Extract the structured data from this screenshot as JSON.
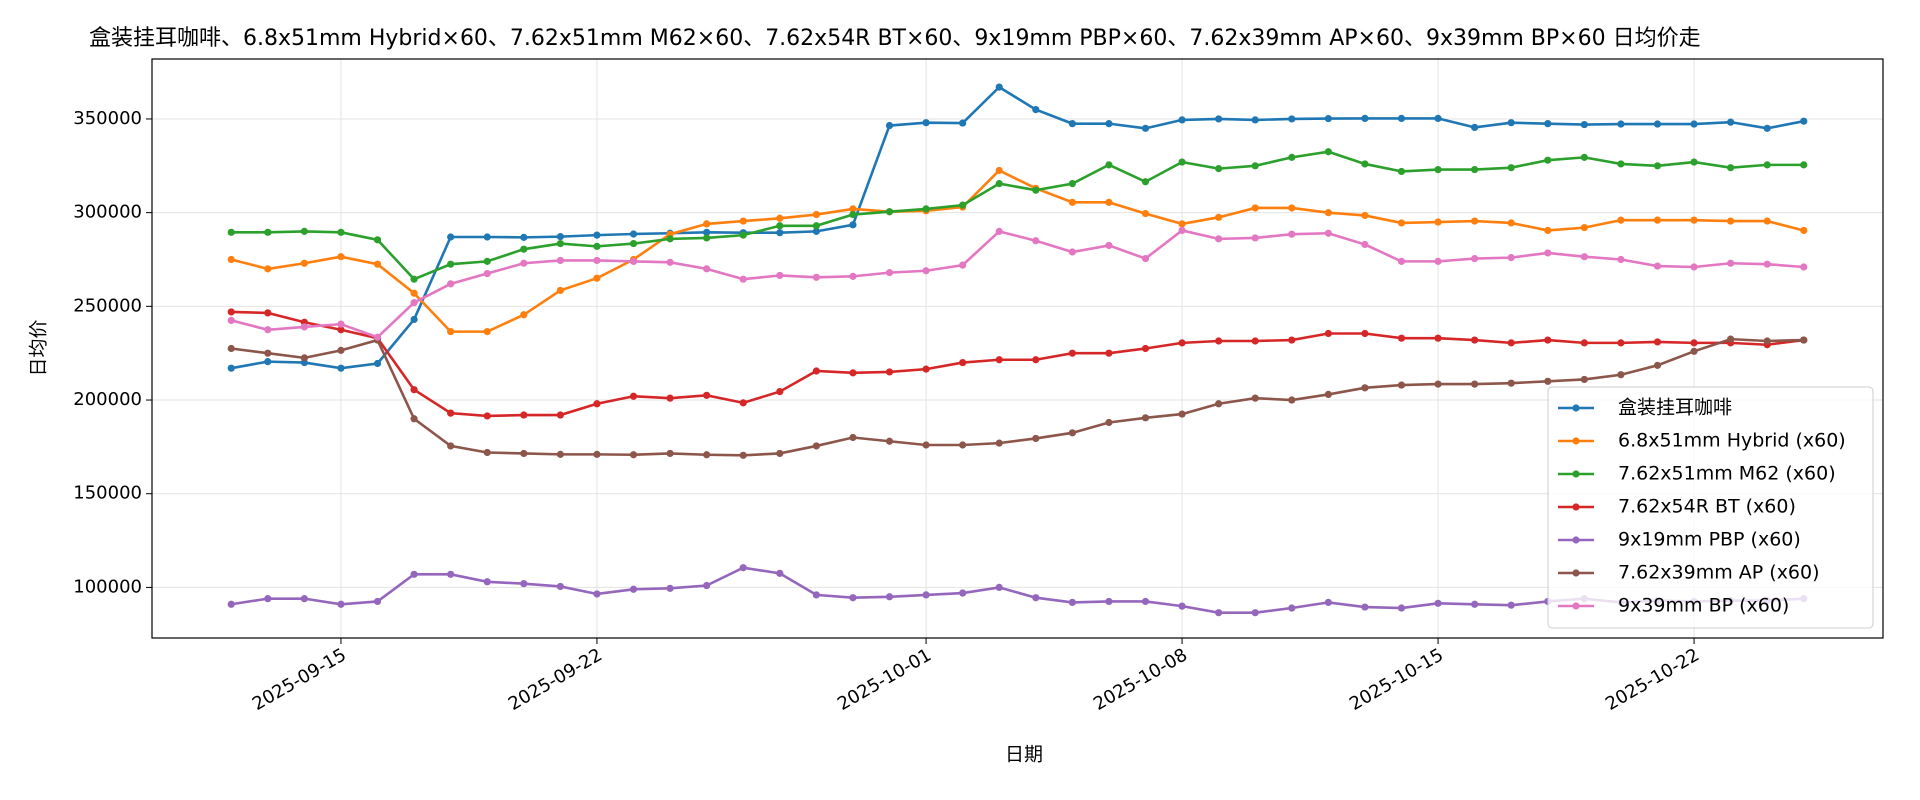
{
  "chart_data": {
    "type": "line",
    "title": "盒装挂耳咖啡、6.8x51mm Hybrid×60、7.62x51mm M62×60、7.62x54R BT×60、9x19mm PBP×60、7.62x39mm AP×60、9x39mm BP×60 日均价走",
    "x_label": "日期",
    "y_label": "日均价",
    "x": [
      "2025-09-12",
      "2025-09-13",
      "2025-09-14",
      "2025-09-15",
      "2025-09-16",
      "2025-09-17",
      "2025-09-18",
      "2025-09-19",
      "2025-09-20",
      "2025-09-21",
      "2025-09-22",
      "2025-09-23",
      "2025-09-24",
      "2025-09-25",
      "2025-09-26",
      "2025-09-27",
      "2025-09-28",
      "2025-09-29",
      "2025-09-30",
      "2025-10-01",
      "2025-10-02",
      "2025-10-03",
      "2025-10-04",
      "2025-10-05",
      "2025-10-06",
      "2025-10-07",
      "2025-10-08",
      "2025-10-09",
      "2025-10-10",
      "2025-10-11",
      "2025-10-12",
      "2025-10-13",
      "2025-10-14",
      "2025-10-15",
      "2025-10-16",
      "2025-10-17",
      "2025-10-18",
      "2025-10-19",
      "2025-10-20",
      "2025-10-21",
      "2025-10-22",
      "2025-10-23",
      "2025-10-24",
      "2025-10-25"
    ],
    "xlim": [
      "2025-09-09T20:00",
      "2025-10-27T04:00"
    ],
    "xticks": [
      "2025-09-15",
      "2025-09-22",
      "2025-10-01",
      "2025-10-08",
      "2025-10-15",
      "2025-10-22"
    ],
    "ylim": [
      73000,
      382000
    ],
    "yticks": [
      100000,
      150000,
      200000,
      250000,
      300000,
      350000
    ],
    "grid": true,
    "legend": "lower right",
    "series": [
      {
        "name": "盒装挂耳咖啡",
        "color": "#1f77b4",
        "values": [
          217000,
          220500,
          220000,
          217000,
          219500,
          243000,
          287000,
          287000,
          286800,
          287200,
          288000,
          288600,
          289000,
          289500,
          289300,
          289300,
          290000,
          293500,
          346500,
          348000,
          347800,
          367000,
          355000,
          347500,
          347500,
          345000,
          349500,
          350000,
          349500,
          350000,
          350200,
          350300,
          350300,
          350300,
          345500,
          348000,
          347500,
          347000,
          347300,
          347300,
          347300,
          348300,
          345000,
          348800
        ]
      },
      {
        "name": "6.8x51mm Hybrid (x60)",
        "color": "#ff7f0e",
        "values": [
          275000,
          270000,
          273000,
          276500,
          272500,
          257000,
          236500,
          236500,
          245500,
          258500,
          265000,
          275000,
          288500,
          294000,
          295500,
          297000,
          299000,
          302000,
          300500,
          301000,
          303000,
          322500,
          313000,
          305500,
          305500,
          299500,
          294000,
          297500,
          302500,
          302500,
          300000,
          298500,
          294500,
          295000,
          295500,
          294500,
          290500,
          292000,
          296000,
          296000,
          296000,
          295500,
          295500,
          290500
        ]
      },
      {
        "name": "7.62x51mm M62 (x60)",
        "color": "#2ca02c",
        "values": [
          289500,
          289500,
          290000,
          289500,
          285500,
          264500,
          272500,
          274000,
          280500,
          283500,
          282000,
          283500,
          286000,
          286500,
          288000,
          293000,
          293000,
          299000,
          300500,
          302000,
          304000,
          315500,
          312000,
          315500,
          325500,
          316500,
          327000,
          323500,
          325000,
          329500,
          332500,
          326000,
          322000,
          323000,
          323000,
          324000,
          328000,
          329500,
          326000,
          325000,
          327000,
          324000,
          325500,
          325500
        ]
      },
      {
        "name": "7.62x54R BT (x60)",
        "color": "#d62728",
        "values": [
          247000,
          246500,
          241500,
          237500,
          233000,
          205500,
          193000,
          191500,
          192000,
          192000,
          198000,
          202000,
          201000,
          202500,
          198500,
          204500,
          215500,
          214500,
          215000,
          216500,
          220000,
          221500,
          221500,
          225000,
          225000,
          227500,
          230500,
          231500,
          231500,
          232000,
          235500,
          235500,
          233000,
          233000,
          232000,
          230500,
          232000,
          230500,
          230500,
          231000,
          230500,
          230500,
          229500,
          232000
        ]
      },
      {
        "name": "9x19mm PBP (x60)",
        "color": "#9467bd",
        "values": [
          91000,
          94000,
          94000,
          91000,
          92500,
          107000,
          107000,
          103000,
          102000,
          100500,
          96500,
          99000,
          99500,
          101000,
          110500,
          107500,
          96000,
          94500,
          95000,
          96000,
          97000,
          100000,
          94500,
          92000,
          92500,
          92500,
          90000,
          86500,
          86500,
          89000,
          92000,
          89500,
          89000,
          91500,
          91000,
          90500,
          92500,
          94000,
          92000,
          93000,
          92500,
          93000,
          93000,
          94000
        ]
      },
      {
        "name": "7.62x39mm AP (x60)",
        "color": "#8c564b",
        "values": [
          227500,
          225000,
          222500,
          226500,
          232000,
          190000,
          175500,
          172000,
          171500,
          171000,
          171000,
          170800,
          171500,
          170800,
          170500,
          171500,
          175500,
          180000,
          178000,
          176000,
          176000,
          177000,
          179500,
          182500,
          188000,
          190500,
          192500,
          198000,
          201000,
          200000,
          203000,
          206500,
          208000,
          208500,
          208500,
          209000,
          210000,
          211000,
          213500,
          218500,
          226000,
          232500,
          231500,
          232000
        ]
      },
      {
        "name": "9x39mm BP (x60)",
        "color": "#e377c2",
        "values": [
          242500,
          237500,
          239000,
          240500,
          233500,
          252000,
          262000,
          267500,
          273000,
          274500,
          274500,
          274000,
          273500,
          270000,
          264500,
          266500,
          265500,
          266000,
          268000,
          269000,
          272000,
          290000,
          285000,
          279000,
          282500,
          275500,
          290500,
          286000,
          286500,
          288500,
          289000,
          283000,
          274000,
          274000,
          275500,
          276000,
          278500,
          276500,
          275000,
          271500,
          271000,
          273000,
          272500,
          271000
        ]
      }
    ]
  }
}
